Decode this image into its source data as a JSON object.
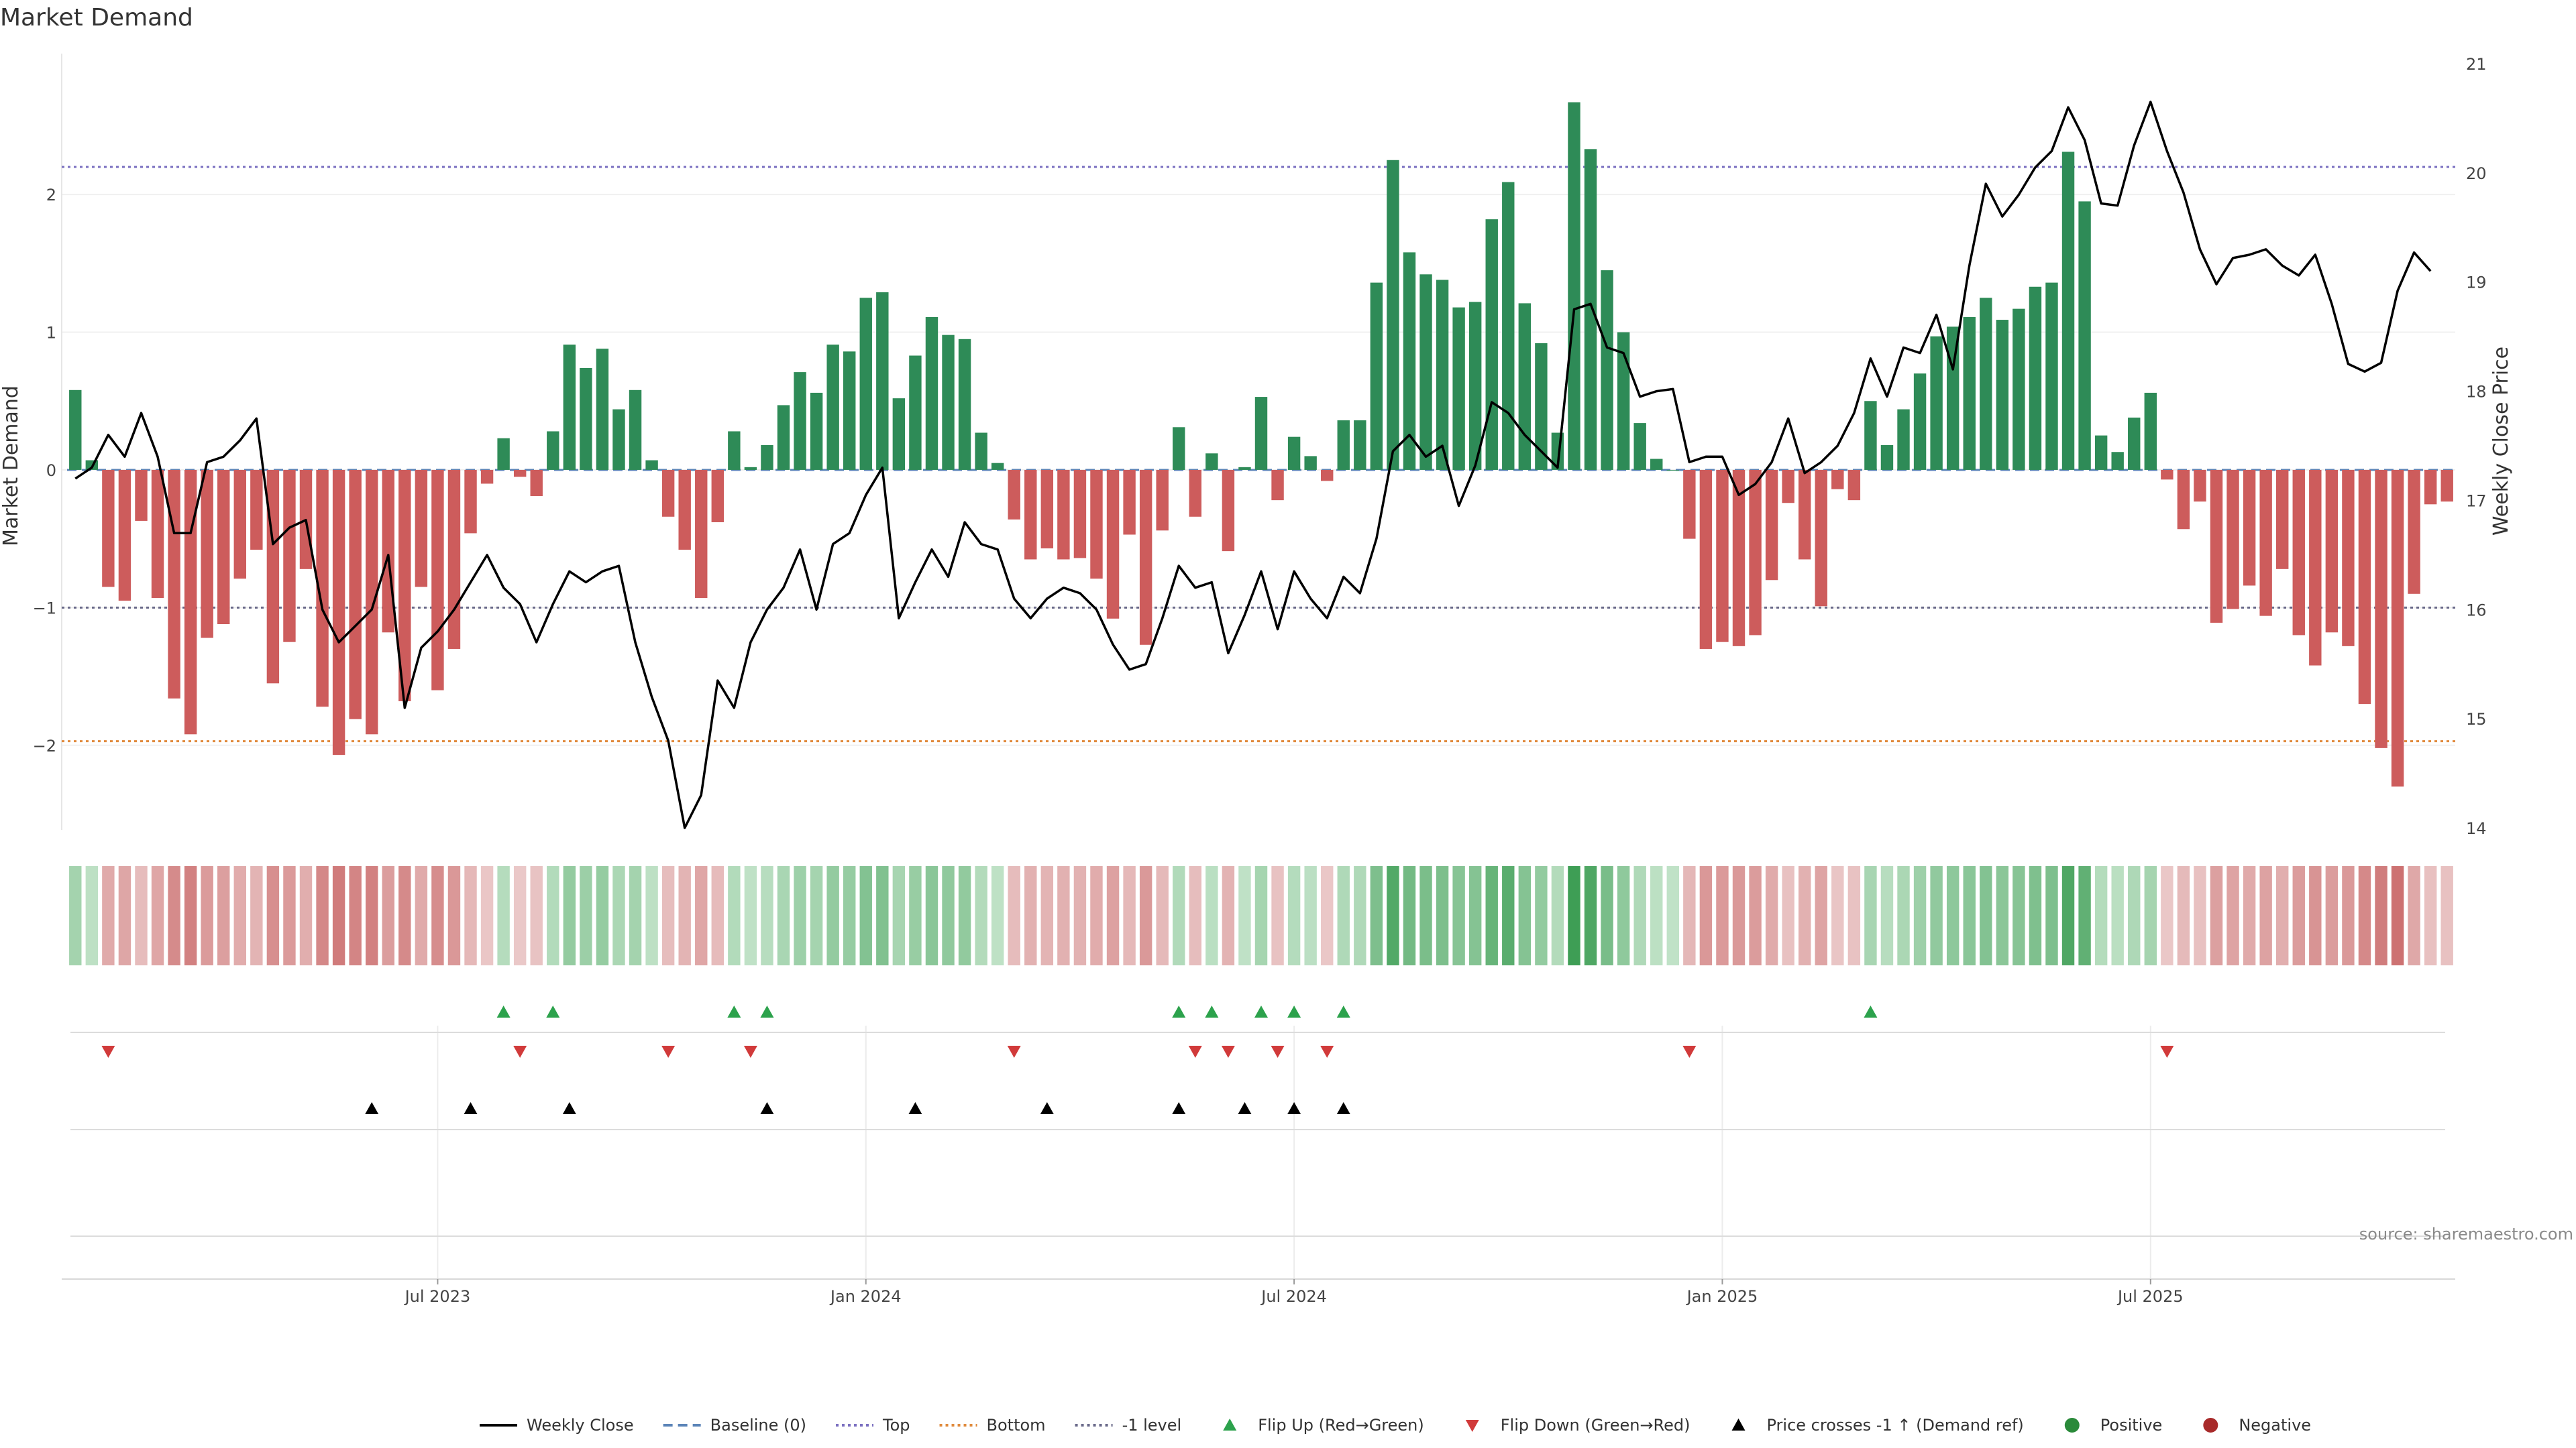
{
  "chart_data": {
    "type": "bar",
    "title": "Market Demand",
    "ylabel": "Market Demand",
    "y2label": "Weekly Close Price",
    "ylim": [
      -2.6,
      2.95
    ],
    "y2lim": [
      14.0,
      21.0
    ],
    "yticks": [
      -2,
      -1,
      0,
      1,
      2
    ],
    "ytick_labels": [
      "−2",
      "−1",
      "0",
      "1",
      "2"
    ],
    "y2ticks": [
      14,
      15,
      16,
      17,
      18,
      19,
      20,
      21
    ],
    "y2tick_labels": [
      "14",
      "15",
      "16",
      "17",
      "18",
      "19",
      "20",
      "21"
    ],
    "x_ticks": [
      {
        "label": "Jul 2023",
        "index": 22
      },
      {
        "label": "Jan 2024",
        "index": 48
      },
      {
        "label": "Jul 2024",
        "index": 74
      },
      {
        "label": "Jan 2025",
        "index": 100
      },
      {
        "label": "Jul 2025",
        "index": 126
      }
    ],
    "reference_lines": {
      "top": 2.2,
      "bottom": -1.97,
      "minus_one": -1.0,
      "baseline": 0.0
    },
    "series": [
      {
        "name": "Market Demand",
        "kind": "bar",
        "values": [
          0.58,
          0.07,
          -0.85,
          -0.95,
          -0.37,
          -0.93,
          -1.66,
          -1.92,
          -1.22,
          -1.12,
          -0.79,
          -0.58,
          -1.55,
          -1.25,
          -0.72,
          -1.72,
          -2.07,
          -1.81,
          -1.92,
          -1.18,
          -1.68,
          -0.85,
          -1.6,
          -1.3,
          -0.46,
          -0.1,
          0.23,
          -0.05,
          -0.19,
          0.28,
          0.91,
          0.74,
          0.88,
          0.44,
          0.58,
          0.07,
          -0.34,
          -0.58,
          -0.93,
          -0.38,
          0.28,
          0.02,
          0.18,
          0.47,
          0.71,
          0.56,
          0.91,
          0.86,
          1.25,
          1.29,
          0.52,
          0.83,
          1.11,
          0.98,
          0.95,
          0.27,
          0.05,
          -0.36,
          -0.65,
          -0.57,
          -0.65,
          -0.64,
          -0.79,
          -1.08,
          -0.47,
          -1.27,
          -0.44,
          0.31,
          -0.34,
          0.12,
          -0.59,
          0.02,
          0.53,
          -0.22,
          0.24,
          0.1,
          -0.08,
          0.36,
          0.36,
          1.36,
          2.25,
          1.58,
          1.42,
          1.38,
          1.18,
          1.22,
          1.82,
          2.09,
          1.21,
          0.92,
          0.27,
          2.67,
          2.33,
          1.45,
          1.0,
          0.34,
          0.08,
          0.0,
          -0.5,
          -1.3,
          -1.25,
          -1.28,
          -1.2,
          -0.8,
          -0.24,
          -0.65,
          -0.99,
          -0.14,
          -0.22,
          0.5,
          0.18,
          0.44,
          0.7,
          0.97,
          1.04,
          1.11,
          1.25,
          1.09,
          1.17,
          1.33,
          1.36,
          2.31,
          1.95,
          0.25,
          0.13,
          0.38,
          0.56,
          -0.07,
          -0.43,
          -0.23,
          -1.11,
          -1.01,
          -0.84,
          -1.06,
          -0.72,
          -1.2,
          -1.42,
          -1.18,
          -1.28,
          -1.7,
          -2.02,
          -2.3,
          -0.9,
          -0.25,
          -0.23
        ]
      },
      {
        "name": "Weekly Close",
        "kind": "line",
        "values": [
          17.2,
          17.3,
          17.6,
          17.4,
          17.8,
          17.4,
          16.7,
          16.7,
          17.35,
          17.4,
          17.55,
          17.75,
          16.6,
          16.75,
          16.82,
          16.0,
          15.7,
          15.85,
          16.0,
          16.5,
          15.1,
          15.65,
          15.8,
          16.0,
          16.25,
          16.5,
          16.2,
          16.05,
          15.7,
          16.05,
          16.35,
          16.25,
          16.35,
          16.4,
          15.7,
          15.2,
          14.8,
          14.0,
          14.3,
          15.35,
          15.1,
          15.7,
          16.0,
          16.2,
          16.55,
          16.0,
          16.6,
          16.7,
          17.05,
          17.3,
          15.92,
          16.25,
          16.55,
          16.3,
          16.8,
          16.6,
          16.55,
          16.1,
          15.92,
          16.1,
          16.2,
          16.15,
          16.0,
          15.68,
          15.45,
          15.5,
          15.92,
          16.4,
          16.2,
          16.25,
          15.6,
          15.95,
          16.35,
          15.82,
          16.35,
          16.1,
          15.92,
          16.3,
          16.15,
          16.65,
          17.45,
          17.6,
          17.4,
          17.5,
          16.95,
          17.32,
          17.9,
          17.8,
          17.6,
          17.45,
          17.3,
          18.75,
          18.8,
          18.4,
          18.35,
          17.95,
          18.0,
          18.02,
          17.35,
          17.4,
          17.4,
          17.05,
          17.15,
          17.35,
          17.75,
          17.25,
          17.35,
          17.5,
          17.8,
          18.3,
          17.95,
          18.4,
          18.35,
          18.7,
          18.2,
          19.15,
          19.9,
          19.6,
          19.8,
          20.05,
          20.2,
          20.6,
          20.3,
          19.72,
          19.7,
          20.25,
          20.65,
          20.2,
          19.82,
          19.3,
          18.98,
          19.22,
          19.25,
          19.3,
          19.15,
          19.06,
          19.25,
          18.8,
          18.25,
          18.18,
          18.26,
          18.92,
          19.27,
          19.1
        ]
      }
    ],
    "flip_up": [
      26,
      29,
      40,
      42,
      67,
      69,
      72,
      74,
      77,
      109
    ],
    "flip_down": [
      2,
      27,
      36,
      41,
      57,
      68,
      70,
      73,
      76,
      98,
      127
    ],
    "price_crosses": [
      18,
      24,
      30,
      42,
      51,
      59,
      67,
      71,
      74,
      77
    ],
    "legend": [
      {
        "label": "Weekly Close",
        "kind": "line",
        "color": "#000000"
      },
      {
        "label": "Baseline (0)",
        "kind": "dash",
        "color": "#5b84b8"
      },
      {
        "label": "Top",
        "kind": "dot",
        "color": "#7a6fc0"
      },
      {
        "label": "Bottom",
        "kind": "dot",
        "color": "#e08a3c"
      },
      {
        "label": "-1 level",
        "kind": "dot",
        "color": "#6a6a8a"
      },
      {
        "label": "Flip Up (Red→Green)",
        "kind": "tri-up",
        "color": "#2ca24c"
      },
      {
        "label": "Flip Down (Green→Red)",
        "kind": "tri-down",
        "color": "#d13a3a"
      },
      {
        "label": "Price crosses -1 ↑ (Demand ref)",
        "kind": "tri-up",
        "color": "#000000"
      },
      {
        "label": "Positive",
        "kind": "circle",
        "color": "#2a8a3a"
      },
      {
        "label": "Negative",
        "kind": "circle",
        "color": "#a82a2a"
      }
    ],
    "source": "source: sharemaestro.com",
    "colors": {
      "positive_bar": "#2e8b57",
      "negative_bar": "#cd5c5c",
      "line": "#000000"
    }
  }
}
